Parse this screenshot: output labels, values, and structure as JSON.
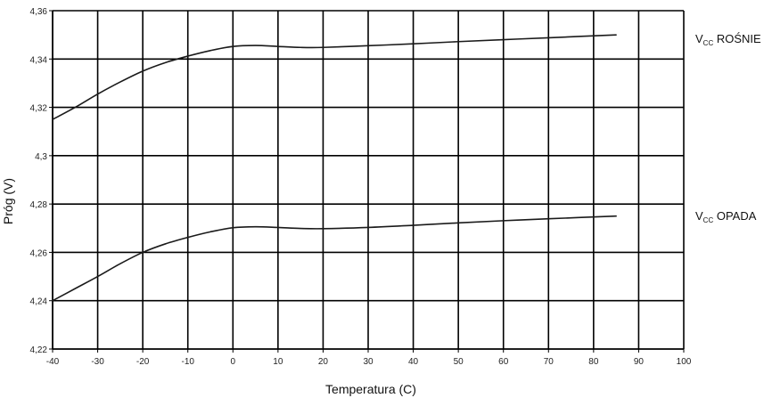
{
  "chart_data": {
    "type": "line",
    "title": "",
    "xlabel": "Temperatura (C)",
    "ylabel": "Próg (V)",
    "xlim": [
      -40,
      100
    ],
    "ylim": [
      4.22,
      4.36
    ],
    "x_ticks": [
      "-40",
      "-30",
      "-20",
      "-10",
      "0",
      "10",
      "20",
      "30",
      "40",
      "50",
      "60",
      "70",
      "80",
      "90",
      "100"
    ],
    "y_ticks": [
      "4,22",
      "4,24",
      "4,26",
      "4,28",
      "4,3",
      "4,32",
      "4,34",
      "4,36"
    ],
    "grid": true,
    "legend": "inline-right",
    "series": [
      {
        "name_main": "V",
        "name_sub": "CC",
        "name_rest": " ROŚNIE",
        "color": "#1a1a1a",
        "x": [
          -40,
          -35,
          -30,
          -25,
          -20,
          -15,
          -10,
          -5,
          0,
          5,
          10,
          15,
          20,
          30,
          40,
          50,
          60,
          70,
          85
        ],
        "y": [
          4.315,
          4.32,
          4.3255,
          4.3305,
          4.335,
          4.3385,
          4.3412,
          4.3435,
          4.3452,
          4.3456,
          4.3452,
          4.3448,
          4.3448,
          4.3455,
          4.3463,
          4.3472,
          4.348,
          4.3488,
          4.35
        ]
      },
      {
        "name_main": "V",
        "name_sub": "CC",
        "name_rest": " OPADA",
        "color": "#1a1a1a",
        "x": [
          -40,
          -35,
          -30,
          -25,
          -20,
          -15,
          -10,
          -5,
          0,
          5,
          10,
          15,
          20,
          30,
          40,
          50,
          60,
          70,
          85
        ],
        "y": [
          4.24,
          4.245,
          4.25,
          4.2553,
          4.26,
          4.2635,
          4.2662,
          4.2685,
          4.2702,
          4.2706,
          4.2703,
          4.2699,
          4.2698,
          4.2703,
          4.2712,
          4.2722,
          4.2731,
          4.2739,
          4.275
        ]
      }
    ]
  }
}
